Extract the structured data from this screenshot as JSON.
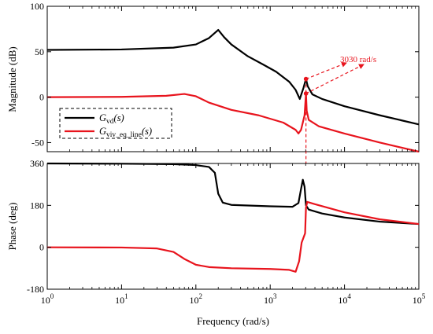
{
  "chart_data": [
    {
      "type": "line",
      "panel": "magnitude",
      "ylabel": "Magnitude (dB)",
      "xscale": "log",
      "xlim": [
        1,
        100000
      ],
      "ylim": [
        -60,
        100
      ],
      "yticks": [
        {
          "value": -50,
          "label": "-50"
        },
        {
          "value": 0,
          "label": "0"
        },
        {
          "value": 50,
          "label": "50"
        },
        {
          "value": 100,
          "label": "100"
        }
      ],
      "grid": false,
      "legend_position": "bottom-left",
      "series": [
        {
          "name": "Gvd(s)",
          "color": "#000000",
          "points": [
            [
              1,
              52
            ],
            [
              10,
              52.5
            ],
            [
              50,
              54.5
            ],
            [
              100,
              58
            ],
            [
              150,
              65
            ],
            [
              200,
              74
            ],
            [
              240,
              66
            ],
            [
              300,
              58
            ],
            [
              500,
              45
            ],
            [
              800,
              36
            ],
            [
              1200,
              28
            ],
            [
              1800,
              17
            ],
            [
              2200,
              8
            ],
            [
              2500,
              -2
            ],
            [
              2800,
              10
            ],
            [
              3030,
              20
            ],
            [
              3200,
              12
            ],
            [
              3700,
              3
            ],
            [
              5000,
              -2
            ],
            [
              10000,
              -10
            ],
            [
              30000,
              -20
            ],
            [
              100000,
              -30
            ]
          ]
        },
        {
          "name": "Gviv_eq_line(s)",
          "color": "#e8141d",
          "points": [
            [
              1,
              0
            ],
            [
              10,
              0.3
            ],
            [
              40,
              1.5
            ],
            [
              70,
              3.5
            ],
            [
              100,
              1
            ],
            [
              150,
              -6
            ],
            [
              300,
              -14
            ],
            [
              700,
              -20
            ],
            [
              1500,
              -28
            ],
            [
              2200,
              -36
            ],
            [
              2400,
              -40
            ],
            [
              2600,
              -36
            ],
            [
              2900,
              -20
            ],
            [
              3030,
              4
            ],
            [
              3100,
              -15
            ],
            [
              3300,
              -25
            ],
            [
              4500,
              -32
            ],
            [
              10000,
              -40
            ],
            [
              30000,
              -50
            ],
            [
              100000,
              -60
            ]
          ]
        }
      ],
      "legend_entries": [
        {
          "main": "G",
          "sub": "vd",
          "suffix": "(s)"
        },
        {
          "main": "G",
          "sub": "viv_eq_line",
          "suffix": "(s)"
        }
      ],
      "annotations": [
        {
          "text": "3030 rad/s",
          "x": 3030,
          "markers": [
            20,
            4
          ],
          "color": "#e8141d"
        }
      ]
    },
    {
      "type": "line",
      "panel": "phase",
      "xlabel": "Frequency (rad/s)",
      "ylabel": "Phase (deg)",
      "xscale": "log",
      "xlim": [
        1,
        100000
      ],
      "ylim": [
        -180,
        360
      ],
      "xticks": [
        {
          "value": 1,
          "base": "10",
          "exp": "0"
        },
        {
          "value": 10,
          "base": "10",
          "exp": "1"
        },
        {
          "value": 100,
          "base": "10",
          "exp": "2"
        },
        {
          "value": 1000,
          "base": "10",
          "exp": "3"
        },
        {
          "value": 10000,
          "base": "10",
          "exp": "4"
        },
        {
          "value": 100000,
          "base": "10",
          "exp": "5"
        }
      ],
      "yticks": [
        {
          "value": -180,
          "label": "-180"
        },
        {
          "value": 0,
          "label": "0"
        },
        {
          "value": 180,
          "label": "180"
        },
        {
          "value": 360,
          "label": "360"
        }
      ],
      "grid": false,
      "series": [
        {
          "name": "Gvd(s)",
          "color": "#000000",
          "points": [
            [
              1,
              360
            ],
            [
              10,
              359
            ],
            [
              50,
              357
            ],
            [
              100,
              353
            ],
            [
              150,
              345
            ],
            [
              180,
              320
            ],
            [
              200,
              230
            ],
            [
              230,
              192
            ],
            [
              300,
              182
            ],
            [
              1000,
              176
            ],
            [
              2000,
              174
            ],
            [
              2400,
              190
            ],
            [
              2600,
              250
            ],
            [
              2750,
              290
            ],
            [
              2900,
              260
            ],
            [
              3030,
              180
            ],
            [
              3300,
              162
            ],
            [
              5000,
              145
            ],
            [
              10000,
              128
            ],
            [
              30000,
              110
            ],
            [
              100000,
              100
            ]
          ]
        },
        {
          "name": "Gviv_eq_line(s)",
          "color": "#e8141d",
          "points": [
            [
              1,
              0
            ],
            [
              10,
              -1
            ],
            [
              30,
              -5
            ],
            [
              50,
              -20
            ],
            [
              70,
              -50
            ],
            [
              100,
              -75
            ],
            [
              150,
              -85
            ],
            [
              300,
              -90
            ],
            [
              1000,
              -93
            ],
            [
              1800,
              -97
            ],
            [
              2200,
              -105
            ],
            [
              2450,
              -60
            ],
            [
              2650,
              20
            ],
            [
              2950,
              60
            ],
            [
              3030,
              170
            ],
            [
              3150,
              195
            ],
            [
              4000,
              185
            ],
            [
              10000,
              150
            ],
            [
              30000,
              120
            ],
            [
              100000,
              100
            ]
          ]
        }
      ]
    }
  ]
}
